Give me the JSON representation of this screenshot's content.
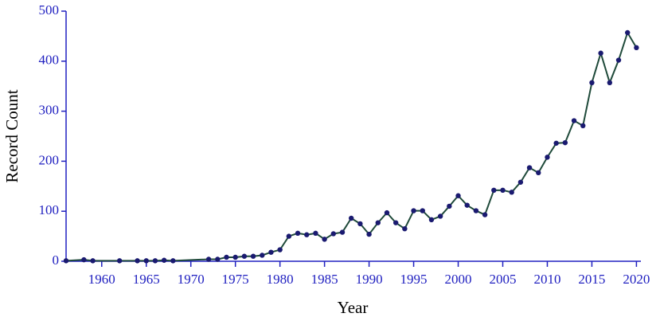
{
  "chart_data": {
    "type": "line",
    "xlabel": "Year",
    "ylabel": "Record Count",
    "x": [
      1956,
      1958,
      1959,
      1962,
      1964,
      1965,
      1966,
      1967,
      1968,
      1972,
      1973,
      1974,
      1975,
      1976,
      1977,
      1978,
      1979,
      1980,
      1981,
      1982,
      1983,
      1984,
      1985,
      1986,
      1987,
      1988,
      1989,
      1990,
      1991,
      1992,
      1993,
      1994,
      1995,
      1996,
      1997,
      1998,
      1999,
      2000,
      2001,
      2002,
      2003,
      2004,
      2005,
      2006,
      2007,
      2008,
      2009,
      2010,
      2011,
      2012,
      2013,
      2014,
      2015,
      2016,
      2017,
      2018,
      2019,
      2020
    ],
    "values": [
      1,
      3,
      1,
      1,
      1,
      1,
      1,
      2,
      1,
      4,
      4,
      8,
      8,
      10,
      10,
      12,
      18,
      23,
      50,
      56,
      53,
      56,
      44,
      55,
      58,
      86,
      75,
      54,
      77,
      97,
      77,
      65,
      101,
      101,
      83,
      90,
      110,
      131,
      112,
      101,
      93,
      142,
      142,
      138,
      158,
      187,
      177,
      208,
      236,
      237,
      281,
      271,
      357,
      416,
      357,
      402,
      457,
      427
    ],
    "line_color": "#1f4a3a",
    "marker_color": "#1a1a70",
    "axis_color": "#2020c0",
    "xlim": [
      1956,
      2020.5
    ],
    "ylim": [
      0,
      500
    ],
    "xticks": [
      1960,
      1965,
      1970,
      1975,
      1980,
      1985,
      1990,
      1995,
      2000,
      2005,
      2010,
      2015,
      2020
    ],
    "yticks": [
      0,
      100,
      200,
      300,
      400,
      500
    ]
  }
}
